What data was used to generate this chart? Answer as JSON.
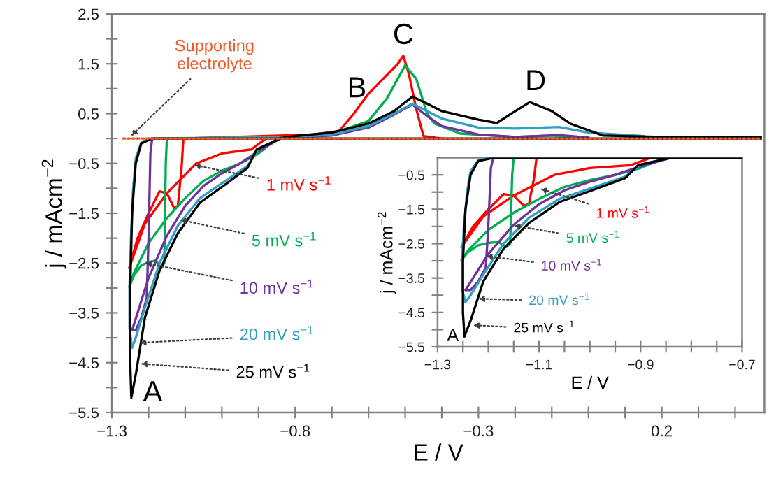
{
  "chart_data": [
    {
      "type": "line",
      "xlabel": "E / V",
      "ylabel": "j / mAcm$^{−2}$",
      "xlim": [
        -1.3,
        0.48
      ],
      "ylim": [
        -5.5,
        2.5
      ],
      "xticks": [
        {
          "value": -1.3,
          "label": "−1.3"
        },
        {
          "value": -1.2,
          "label": null
        },
        {
          "value": -1.1,
          "label": null
        },
        {
          "value": -1.0,
          "label": null
        },
        {
          "value": -0.9,
          "label": null
        },
        {
          "value": -0.8,
          "label": "−0.8"
        },
        {
          "value": -0.7,
          "label": null
        },
        {
          "value": -0.6,
          "label": null
        },
        {
          "value": -0.5,
          "label": null
        },
        {
          "value": -0.4,
          "label": null
        },
        {
          "value": -0.3,
          "label": "−0.3"
        },
        {
          "value": -0.2,
          "label": null
        },
        {
          "value": -0.1,
          "label": null
        },
        {
          "value": 0.0,
          "label": null
        },
        {
          "value": 0.1,
          "label": null
        },
        0.2,
        {
          "value": 0.3,
          "label": null
        },
        {
          "value": 0.4,
          "label": null
        }
      ],
      "yticks": [
        2.5,
        {
          "value": 2.0,
          "label": null
        },
        1.5,
        {
          "value": 1.0,
          "label": null
        },
        0.5,
        {
          "value": 0.0,
          "label": null
        },
        {
          "value": -0.5,
          "label": "−0.5"
        },
        {
          "value": -1.0,
          "label": null
        },
        {
          "value": -1.5,
          "label": "−1.5"
        },
        {
          "value": -2.0,
          "label": null
        },
        {
          "value": -2.5,
          "label": "−2.5"
        },
        {
          "value": -3.0,
          "label": null
        },
        {
          "value": -3.5,
          "label": "−3.5"
        },
        {
          "value": -4.0,
          "label": null
        },
        {
          "value": -4.5,
          "label": "−4.5"
        },
        {
          "value": -5.0,
          "label": null
        },
        {
          "value": -5.5,
          "label": "−5.5"
        }
      ],
      "series": [
        {
          "name": "1 mV s$^{−1}$",
          "color": "#ff0000",
          "x": [
            -0.88,
            -0.92,
            -1.0,
            -1.07,
            -1.15,
            -1.21,
            -1.253,
            -1.23,
            -1.2,
            -1.17,
            -1.15,
            -1.13,
            -1.12,
            -1.11,
            -1.105,
            -0.75,
            -0.68,
            -0.64,
            -0.6,
            -0.56,
            -0.52,
            -0.505,
            -0.49,
            -0.47,
            -0.45,
            -0.4
          ],
          "values": [
            0,
            -0.22,
            -0.3,
            -0.5,
            -1.1,
            -1.71,
            -2.6,
            -2.0,
            -1.5,
            -1.06,
            -1.1,
            -1.4,
            -1.35,
            -0.6,
            0,
            0.08,
            0.15,
            0.5,
            0.9,
            1.2,
            1.5,
            1.66,
            1.3,
            0.6,
            0.05,
            0
          ]
        },
        {
          "name": "5 mV s$^{−1}$",
          "color": "#00b050",
          "x": [
            -0.85,
            -0.9,
            -0.95,
            -1.0,
            -1.05,
            -1.1,
            -1.15,
            -1.2,
            -1.24,
            -1.253,
            -1.24,
            -1.22,
            -1.2,
            -1.18,
            -1.165,
            -1.157,
            -1.153,
            -1.15,
            -0.8,
            -0.7,
            -0.6,
            -0.55,
            -0.5,
            -0.47,
            -0.44,
            -0.42,
            -0.35,
            -0.2,
            -0.1,
            -0.05
          ],
          "values": [
            0,
            -0.3,
            -0.5,
            -0.65,
            -0.85,
            -1.2,
            -1.6,
            -2.1,
            -2.7,
            -2.98,
            -2.75,
            -2.55,
            -2.48,
            -2.45,
            -2.6,
            -2.5,
            -0.5,
            0,
            0.03,
            0.1,
            0.35,
            0.8,
            1.47,
            1.2,
            0.5,
            0.3,
            0.1,
            0.03,
            0.06,
            0.02
          ]
        },
        {
          "name": "10 mV s$^{−1}$",
          "color": "#7030a0",
          "x": [
            -0.84,
            -0.9,
            -0.95,
            -1.0,
            -1.05,
            -1.1,
            -1.15,
            -1.2,
            -1.23,
            -1.245,
            -1.235,
            -1.22,
            -1.205,
            -1.2,
            -1.195,
            -1.19,
            -0.8,
            -0.7,
            -0.6,
            -0.53,
            -0.48,
            -0.44,
            -0.4,
            -0.3,
            -0.2,
            -0.08,
            0.0
          ],
          "values": [
            0,
            -0.25,
            -0.5,
            -0.7,
            -0.95,
            -1.35,
            -1.95,
            -2.8,
            -3.5,
            -3.85,
            -3.85,
            -3.6,
            -3.2,
            -2.0,
            -0.3,
            0,
            0.02,
            0.06,
            0.22,
            0.48,
            0.68,
            0.45,
            0.25,
            0.08,
            0.03,
            0.07,
            0.02
          ]
        },
        {
          "name": "20 mV s$^{−1}$",
          "color": "#31a0c0",
          "x": [
            -0.84,
            -0.9,
            -0.93,
            -0.99,
            -1.06,
            -1.12,
            -1.17,
            -1.21,
            -1.235,
            -1.245,
            -1.252,
            -1.252,
            -1.248,
            -1.242,
            -1.235,
            -1.22,
            -1.2,
            -0.8,
            -0.7,
            -0.6,
            -0.53,
            -0.48,
            -0.44,
            -0.4,
            -0.3,
            -0.2,
            -0.08,
            0.0,
            0.15
          ],
          "values": [
            0,
            -0.2,
            -0.55,
            -0.85,
            -1.2,
            -1.75,
            -2.5,
            -3.4,
            -4.0,
            -4.2,
            -3.8,
            -3.0,
            -2.0,
            -1.0,
            -0.4,
            -0.08,
            0,
            0.03,
            0.08,
            0.25,
            0.5,
            0.7,
            0.55,
            0.4,
            0.22,
            0.2,
            0.23,
            0.12,
            0.05
          ]
        },
        {
          "name": "25 mV s$^{−1}$",
          "color": "#000000",
          "x": [
            0.47,
            -0.84,
            -0.905,
            -0.93,
            -0.99,
            -1.06,
            -1.12,
            -1.17,
            -1.21,
            -1.234,
            -1.247,
            -1.25,
            -1.25,
            -1.245,
            -1.235,
            -1.22,
            -1.19,
            -0.85,
            -0.8,
            -0.7,
            -0.6,
            -0.53,
            -0.48,
            -0.44,
            -0.4,
            -0.3,
            -0.25,
            -0.21,
            -0.16,
            -0.1,
            -0.05,
            0.04,
            0.2,
            0.47
          ],
          "values": [
            0,
            0,
            -0.22,
            -0.59,
            -0.92,
            -1.29,
            -1.9,
            -2.65,
            -3.6,
            -4.7,
            -5.2,
            -4.5,
            -3.0,
            -1.5,
            -0.5,
            -0.1,
            0,
            0,
            0.05,
            0.12,
            0.3,
            0.55,
            0.84,
            0.7,
            0.55,
            0.38,
            0.31,
            0.5,
            0.73,
            0.55,
            0.3,
            0.06,
            0.03,
            0.03
          ]
        },
        {
          "name": "Supporting\nelectrolyte",
          "color": "#f05a28",
          "line_style": "dotted",
          "x": [
            -1.27,
            0.47
          ],
          "values": [
            0,
            0
          ]
        }
      ],
      "annotations": [
        {
          "text": "A",
          "x": -1.247,
          "y": -5.2
        },
        {
          "text": "B",
          "x": -0.6,
          "y": 0.9
        },
        {
          "text": "C",
          "x": -0.505,
          "y": 1.66
        },
        {
          "text": "D",
          "x": -0.16,
          "y": 0.73
        }
      ]
    },
    {
      "type": "line",
      "xlabel": "E / V",
      "ylabel": "j / mAcm$^{−2}$",
      "xlim": [
        -1.3,
        -0.7
      ],
      "ylim": [
        -5.5,
        0
      ],
      "xticks": [
        {
          "value": -1.3,
          "label": "−1.3"
        },
        {
          "value": -1.25,
          "label": null
        },
        {
          "value": -1.2,
          "label": null
        },
        {
          "value": -1.15,
          "label": null
        },
        {
          "value": -1.1,
          "label": "−1.1"
        },
        {
          "value": -1.05,
          "label": null
        },
        {
          "value": -1.0,
          "label": null
        },
        {
          "value": -0.95,
          "label": null
        },
        {
          "value": -0.9,
          "label": "−0.9"
        },
        {
          "value": -0.85,
          "label": null
        },
        {
          "value": -0.8,
          "label": null
        },
        {
          "value": -0.75,
          "label": null
        },
        {
          "value": -0.7,
          "label": "−0.7"
        }
      ],
      "yticks": [
        {
          "value": -0.5,
          "label": "−0.5"
        },
        {
          "value": -1.0,
          "label": null
        },
        {
          "value": -1.5,
          "label": "−1.5"
        },
        {
          "value": -2.0,
          "label": null
        },
        {
          "value": -2.5,
          "label": "−2.5"
        },
        {
          "value": -3.0,
          "label": null
        },
        {
          "value": -3.5,
          "label": "−3.5"
        },
        {
          "value": -4.0,
          "label": null
        },
        {
          "value": -4.5,
          "label": "−4.5"
        },
        {
          "value": -5.0,
          "label": null
        },
        {
          "value": -5.5,
          "label": "−5.5"
        }
      ],
      "series": [
        {
          "name": "1 mV s$^{−1}$",
          "color": "#ff0000",
          "x": [
            -0.88,
            -0.92,
            -1.0,
            -1.07,
            -1.15,
            -1.21,
            -1.253,
            -1.23,
            -1.2,
            -1.17,
            -1.15,
            -1.13,
            -1.12,
            -1.11,
            -1.105
          ],
          "values": [
            0,
            -0.22,
            -0.3,
            -0.5,
            -1.1,
            -1.71,
            -2.6,
            -2.0,
            -1.5,
            -1.06,
            -1.1,
            -1.4,
            -1.35,
            -0.6,
            0
          ]
        },
        {
          "name": "5 mV s$^{−1}$",
          "color": "#00b050",
          "x": [
            -0.85,
            -0.9,
            -0.95,
            -1.0,
            -1.05,
            -1.1,
            -1.15,
            -1.2,
            -1.24,
            -1.253,
            -1.24,
            -1.22,
            -1.2,
            -1.18,
            -1.165,
            -1.157,
            -1.153,
            -1.15
          ],
          "values": [
            0,
            -0.3,
            -0.5,
            -0.65,
            -0.85,
            -1.2,
            -1.6,
            -2.1,
            -2.7,
            -2.98,
            -2.75,
            -2.55,
            -2.48,
            -2.45,
            -2.6,
            -2.5,
            -0.5,
            0
          ]
        },
        {
          "name": "10 mV s$^{−1}$",
          "color": "#7030a0",
          "x": [
            -0.84,
            -0.9,
            -0.95,
            -1.0,
            -1.05,
            -1.1,
            -1.15,
            -1.2,
            -1.23,
            -1.245,
            -1.235,
            -1.22,
            -1.205,
            -1.2,
            -1.195,
            -1.19
          ],
          "values": [
            0,
            -0.25,
            -0.5,
            -0.7,
            -0.95,
            -1.35,
            -1.95,
            -2.8,
            -3.5,
            -3.85,
            -3.85,
            -3.6,
            -3.2,
            -2.0,
            -0.3,
            0
          ]
        },
        {
          "name": "20 mV s$^{−1}$",
          "color": "#31a0c0",
          "x": [
            -0.84,
            -0.9,
            -0.93,
            -0.99,
            -1.06,
            -1.12,
            -1.17,
            -1.21,
            -1.235,
            -1.245,
            -1.252,
            -1.252,
            -1.248,
            -1.242,
            -1.235,
            -1.22,
            -1.2
          ],
          "values": [
            0,
            -0.2,
            -0.55,
            -0.85,
            -1.2,
            -1.75,
            -2.5,
            -3.4,
            -4.0,
            -4.2,
            -3.8,
            -3.0,
            -2.0,
            -1.0,
            -0.4,
            -0.08,
            0
          ]
        },
        {
          "name": "25 mV s$^{−1}$",
          "color": "#000000",
          "x": [
            -0.7,
            -0.84,
            -0.905,
            -0.93,
            -0.99,
            -1.06,
            -1.12,
            -1.17,
            -1.21,
            -1.234,
            -1.247,
            -1.25,
            -1.25,
            -1.245,
            -1.235,
            -1.22,
            -1.19,
            -0.85
          ],
          "values": [
            0,
            0,
            -0.22,
            -0.59,
            -0.92,
            -1.29,
            -1.9,
            -2.65,
            -3.6,
            -4.7,
            -5.2,
            -4.5,
            -3.0,
            -1.5,
            -0.5,
            -0.1,
            0,
            0
          ]
        }
      ],
      "annotations": [
        {
          "text": "A",
          "x": -1.247,
          "y": -5.2
        }
      ]
    }
  ]
}
